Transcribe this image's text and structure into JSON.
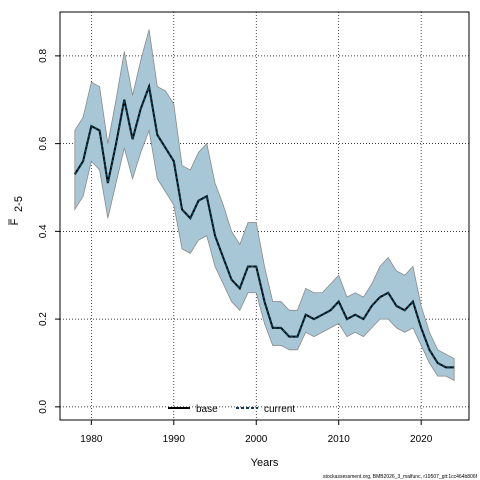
{
  "chart_data": {
    "type": "line",
    "xlabel": "Years",
    "ylabel": "F",
    "ylabel_subscript": "2-5",
    "xlim": [
      1976.2,
      2025.8
    ],
    "ylim": [
      -0.03,
      0.9
    ],
    "xticks": [
      1980,
      1990,
      2000,
      2010,
      2020
    ],
    "yticks": [
      0.0,
      0.2,
      0.4,
      0.6,
      0.8
    ],
    "ytick_labels": [
      "0.0",
      "0.2",
      "0.4",
      "0.6",
      "0.8"
    ],
    "grid": true,
    "legend_position": "bottom-center",
    "x": [
      1978,
      1979,
      1980,
      1981,
      1982,
      1983,
      1984,
      1985,
      1986,
      1987,
      1988,
      1989,
      1990,
      1991,
      1992,
      1993,
      1994,
      1995,
      1996,
      1997,
      1998,
      1999,
      2000,
      2001,
      2002,
      2003,
      2004,
      2005,
      2006,
      2007,
      2008,
      2009,
      2010,
      2011,
      2012,
      2013,
      2014,
      2015,
      2016,
      2017,
      2018,
      2019,
      2020,
      2021,
      2022,
      2023,
      2024
    ],
    "series": [
      {
        "name": "base",
        "color": "#000000",
        "style": "solid",
        "values": [
          0.53,
          0.56,
          0.64,
          0.63,
          0.51,
          0.6,
          0.7,
          0.61,
          0.68,
          0.73,
          0.62,
          0.59,
          0.56,
          0.45,
          0.43,
          0.47,
          0.48,
          0.39,
          0.34,
          0.29,
          0.27,
          0.32,
          0.32,
          0.24,
          0.18,
          0.18,
          0.16,
          0.16,
          0.21,
          0.2,
          0.21,
          0.22,
          0.24,
          0.2,
          0.21,
          0.2,
          0.23,
          0.25,
          0.26,
          0.23,
          0.22,
          0.24,
          0.18,
          0.13,
          0.1,
          0.09,
          0.09
        ]
      },
      {
        "name": "current",
        "color": "#0a3d4f",
        "style": "dashed",
        "values": [
          0.53,
          0.56,
          0.64,
          0.63,
          0.51,
          0.6,
          0.7,
          0.61,
          0.68,
          0.73,
          0.62,
          0.59,
          0.56,
          0.45,
          0.43,
          0.47,
          0.48,
          0.39,
          0.34,
          0.29,
          0.27,
          0.32,
          0.32,
          0.24,
          0.18,
          0.18,
          0.16,
          0.16,
          0.21,
          0.2,
          0.21,
          0.22,
          0.24,
          0.2,
          0.21,
          0.2,
          0.23,
          0.25,
          0.26,
          0.23,
          0.22,
          0.24,
          0.18,
          0.13,
          0.1,
          0.09,
          0.09
        ]
      }
    ],
    "ci_band": {
      "fill_color": "#a7c7d6",
      "edge_color": "#8a8a8a",
      "upper": [
        0.63,
        0.66,
        0.74,
        0.73,
        0.6,
        0.7,
        0.81,
        0.71,
        0.79,
        0.86,
        0.73,
        0.72,
        0.69,
        0.55,
        0.54,
        0.58,
        0.6,
        0.51,
        0.46,
        0.4,
        0.37,
        0.42,
        0.42,
        0.32,
        0.24,
        0.24,
        0.22,
        0.22,
        0.27,
        0.26,
        0.26,
        0.28,
        0.3,
        0.25,
        0.26,
        0.25,
        0.28,
        0.32,
        0.34,
        0.31,
        0.3,
        0.32,
        0.23,
        0.17,
        0.13,
        0.12,
        0.11
      ],
      "lower": [
        0.45,
        0.48,
        0.56,
        0.54,
        0.43,
        0.51,
        0.59,
        0.52,
        0.58,
        0.63,
        0.52,
        0.49,
        0.46,
        0.36,
        0.35,
        0.38,
        0.39,
        0.32,
        0.28,
        0.24,
        0.22,
        0.26,
        0.26,
        0.19,
        0.14,
        0.14,
        0.13,
        0.13,
        0.17,
        0.16,
        0.17,
        0.18,
        0.19,
        0.16,
        0.17,
        0.16,
        0.18,
        0.2,
        0.2,
        0.18,
        0.17,
        0.18,
        0.14,
        0.1,
        0.07,
        0.07,
        0.06
      ]
    }
  },
  "footer": {
    "credit": "stockassessment.org, BMB2026_3_malfunc, r19507_git:1cc464b806f"
  }
}
